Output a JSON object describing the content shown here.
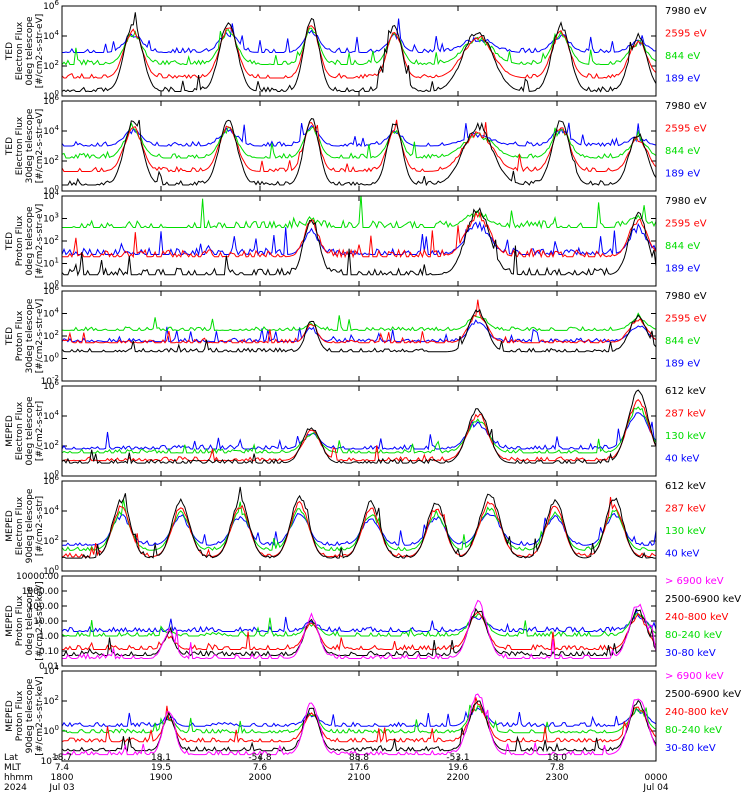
{
  "chart_data": [
    {
      "type": "line",
      "ylabel_lines": [
        "TED",
        "Electron Flux",
        "0deg telescope",
        "[#/cm2-s-str-eV]"
      ],
      "y_tick_labels": [
        "10^6",
        "10^4",
        "10^2",
        "10^0"
      ],
      "y_log_range": [
        0,
        6
      ],
      "series": [
        {
          "name": "7980 eV",
          "color": "#000000"
        },
        {
          "name": "2595 eV",
          "color": "#ff0000"
        },
        {
          "name": "844 eV",
          "color": "#00dd00"
        },
        {
          "name": "189 eV",
          "color": "#0000ff"
        }
      ],
      "passes": [
        {
          "x": 0.12,
          "w": 0.03,
          "peak": 4.8
        },
        {
          "x": 0.28,
          "w": 0.03,
          "peak": 4.9
        },
        {
          "x": 0.42,
          "w": 0.025,
          "peak": 5.2
        },
        {
          "x": 0.56,
          "w": 0.025,
          "peak": 4.7
        },
        {
          "x": 0.7,
          "w": 0.05,
          "peak": 4.3
        },
        {
          "x": 0.84,
          "w": 0.03,
          "peak": 4.7
        },
        {
          "x": 0.97,
          "w": 0.03,
          "peak": 4.0
        }
      ],
      "baselines": [
        0.3,
        1.2,
        2.1,
        2.9
      ]
    },
    {
      "type": "line",
      "ylabel_lines": [
        "TED",
        "Electron Flux",
        "30deg telescope",
        "[#/cm2-s-str-eV]"
      ],
      "y_tick_labels": [
        "10^6",
        "10^4",
        "10^2",
        "10^0"
      ],
      "y_log_range": [
        0,
        6
      ],
      "series": [
        {
          "name": "7980 eV",
          "color": "#000000"
        },
        {
          "name": "2595 eV",
          "color": "#ff0000"
        },
        {
          "name": "844 eV",
          "color": "#00dd00"
        },
        {
          "name": "189 eV",
          "color": "#0000ff"
        }
      ],
      "passes": [
        {
          "x": 0.12,
          "w": 0.03,
          "peak": 4.6
        },
        {
          "x": 0.28,
          "w": 0.03,
          "peak": 4.7
        },
        {
          "x": 0.42,
          "w": 0.025,
          "peak": 4.9
        },
        {
          "x": 0.56,
          "w": 0.025,
          "peak": 4.5
        },
        {
          "x": 0.7,
          "w": 0.05,
          "peak": 4.2
        },
        {
          "x": 0.84,
          "w": 0.03,
          "peak": 4.6
        },
        {
          "x": 0.97,
          "w": 0.03,
          "peak": 3.8
        }
      ],
      "baselines": [
        0.4,
        1.3,
        2.2,
        3.0
      ]
    },
    {
      "type": "line",
      "ylabel_lines": [
        "TED",
        "Proton Flux",
        "0deg telescope",
        "[#/cm2-s-str-eV]"
      ],
      "y_tick_labels": [
        "10^4",
        "10^3",
        "10^2",
        "10^1",
        "10^0"
      ],
      "y_log_range": [
        0,
        4
      ],
      "series": [
        {
          "name": "7980 eV",
          "color": "#000000"
        },
        {
          "name": "2595 eV",
          "color": "#ff0000"
        },
        {
          "name": "844 eV",
          "color": "#00dd00"
        },
        {
          "name": "189 eV",
          "color": "#0000ff"
        }
      ],
      "passes": [
        {
          "x": 0.42,
          "w": 0.025,
          "peak": 3.0
        },
        {
          "x": 0.7,
          "w": 0.04,
          "peak": 3.4
        },
        {
          "x": 0.97,
          "w": 0.03,
          "peak": 3.2
        }
      ],
      "baselines": [
        0.5,
        1.3,
        2.6,
        1.4
      ]
    },
    {
      "type": "line",
      "ylabel_lines": [
        "TED",
        "Proton Flux",
        "30deg telescope",
        "[#/cm2-s-str-eV]"
      ],
      "y_tick_labels": [
        "10^6",
        "10^4",
        "10^2",
        "10^0",
        "10^-2"
      ],
      "y_log_range": [
        -2,
        6
      ],
      "series": [
        {
          "name": "7980 eV",
          "color": "#000000"
        },
        {
          "name": "2595 eV",
          "color": "#ff0000"
        },
        {
          "name": "844 eV",
          "color": "#00dd00"
        },
        {
          "name": "189 eV",
          "color": "#0000ff"
        }
      ],
      "passes": [
        {
          "x": 0.42,
          "w": 0.02,
          "peak": 3.3
        },
        {
          "x": 0.7,
          "w": 0.03,
          "peak": 4.3
        },
        {
          "x": 0.97,
          "w": 0.03,
          "peak": 3.7
        }
      ],
      "baselines": [
        0.6,
        1.4,
        2.5,
        1.5
      ]
    },
    {
      "type": "line",
      "ylabel_lines": [
        "MEPED",
        "Electron Flux",
        "0deg telescope",
        "[#/cm2-s-str]"
      ],
      "y_tick_labels": [
        "10^6",
        "10^4",
        "10^2",
        "10^0"
      ],
      "y_log_range": [
        0,
        7
      ],
      "series": [
        {
          "name": "612 keV",
          "color": "#000000"
        },
        {
          "name": "287 keV",
          "color": "#ff0000"
        },
        {
          "name": "130 keV",
          "color": "#00dd00"
        },
        {
          "name": "40 keV",
          "color": "#0000ff"
        }
      ],
      "passes": [
        {
          "x": 0.42,
          "w": 0.03,
          "peak": 3.8
        },
        {
          "x": 0.7,
          "w": 0.035,
          "peak": 5.2
        },
        {
          "x": 0.97,
          "w": 0.035,
          "peak": 6.5
        }
      ],
      "baselines": [
        1.0,
        1.2,
        1.8,
        2.1
      ]
    },
    {
      "type": "line",
      "ylabel_lines": [
        "MEPED",
        "Electron Flux",
        "90deg telescope",
        "[#/cm2-s-str]"
      ],
      "y_tick_labels": [
        "10^6",
        "10^4",
        "10^2",
        "10^0"
      ],
      "y_log_range": [
        0,
        7
      ],
      "series": [
        {
          "name": "612 keV",
          "color": "#000000"
        },
        {
          "name": "287 keV",
          "color": "#ff0000"
        },
        {
          "name": "130 keV",
          "color": "#00dd00"
        },
        {
          "name": "40 keV",
          "color": "#0000ff"
        }
      ],
      "passes": [
        {
          "x": 0.1,
          "w": 0.03,
          "peak": 5.5
        },
        {
          "x": 0.2,
          "w": 0.03,
          "peak": 5.4
        },
        {
          "x": 0.3,
          "w": 0.03,
          "peak": 5.5
        },
        {
          "x": 0.4,
          "w": 0.03,
          "peak": 5.8
        },
        {
          "x": 0.52,
          "w": 0.03,
          "peak": 5.3
        },
        {
          "x": 0.63,
          "w": 0.03,
          "peak": 5.4
        },
        {
          "x": 0.72,
          "w": 0.035,
          "peak": 5.9
        },
        {
          "x": 0.83,
          "w": 0.03,
          "peak": 5.5
        },
        {
          "x": 0.93,
          "w": 0.03,
          "peak": 5.6
        }
      ],
      "baselines": [
        1.0,
        1.1,
        1.6,
        2.0
      ]
    },
    {
      "type": "line",
      "ylabel_lines": [
        "MEPED",
        "Proton Flux",
        "0deg telescope",
        "[#/cm2-s-str-keV]"
      ],
      "y_tick_labels": [
        "10000.00",
        "1000.00",
        "100.00",
        "10.00",
        "1.00",
        "0.10",
        "0.01"
      ],
      "y_log_range": [
        -2,
        4
      ],
      "series": [
        {
          "name": "> 6900 keV",
          "color": "#ff00ff"
        },
        {
          "name": "2500-6900 keV",
          "color": "#000000"
        },
        {
          "name": "240-800 keV",
          "color": "#ff0000"
        },
        {
          "name": "80-240 keV",
          "color": "#00dd00"
        },
        {
          "name": "30-80 keV",
          "color": "#0000ff"
        }
      ],
      "passes": [
        {
          "x": 0.18,
          "w": 0.02,
          "peak": 0.3
        },
        {
          "x": 0.42,
          "w": 0.025,
          "peak": 1.3
        },
        {
          "x": 0.7,
          "w": 0.03,
          "peak": 2.2
        },
        {
          "x": 0.97,
          "w": 0.03,
          "peak": 2.1
        }
      ],
      "baselines": [
        -1.5,
        -1.3,
        -0.9,
        0.0,
        0.3
      ]
    },
    {
      "type": "line",
      "ylabel_lines": [
        "MEPED",
        "Proton Flux",
        "90deg telescope",
        "[#/cm2-s-str-keV]"
      ],
      "y_tick_labels": [
        "10^4",
        "10^2",
        "10^0",
        "10^-2"
      ],
      "y_log_range": [
        -3,
        4
      ],
      "series": [
        {
          "name": "> 6900 keV",
          "color": "#ff00ff"
        },
        {
          "name": "2500-6900 keV",
          "color": "#000000"
        },
        {
          "name": "240-800 keV",
          "color": "#ff0000"
        },
        {
          "name": "80-240 keV",
          "color": "#00dd00"
        },
        {
          "name": "30-80 keV",
          "color": "#0000ff"
        }
      ],
      "passes": [
        {
          "x": 0.18,
          "w": 0.02,
          "peak": 1.0
        },
        {
          "x": 0.42,
          "w": 0.025,
          "peak": 1.5
        },
        {
          "x": 0.7,
          "w": 0.03,
          "peak": 2.2
        },
        {
          "x": 0.97,
          "w": 0.03,
          "peak": 2.0
        }
      ],
      "baselines": [
        -2.5,
        -2.2,
        -1.5,
        -0.8,
        -0.3
      ]
    }
  ],
  "footer": {
    "row_labels": [
      "Lat",
      "MLT",
      "hhmm",
      "2024"
    ],
    "columns": [
      {
        "lat": "18.7",
        "mlt": "7.4",
        "hhmm": "1800",
        "date": "Jul 03"
      },
      {
        "lat": "18.1",
        "mlt": "19.5",
        "hhmm": "1900",
        "date": ""
      },
      {
        "lat": "-54.8",
        "mlt": "7.6",
        "hhmm": "2000",
        "date": ""
      },
      {
        "lat": "88.8",
        "mlt": "17.6",
        "hhmm": "2100",
        "date": ""
      },
      {
        "lat": "-53.1",
        "mlt": "19.6",
        "hhmm": "2200",
        "date": ""
      },
      {
        "lat": "18.0",
        "mlt": "7.8",
        "hhmm": "2300",
        "date": ""
      },
      {
        "lat": "",
        "mlt": "",
        "hhmm": "0000",
        "date": "Jul 04"
      }
    ]
  }
}
